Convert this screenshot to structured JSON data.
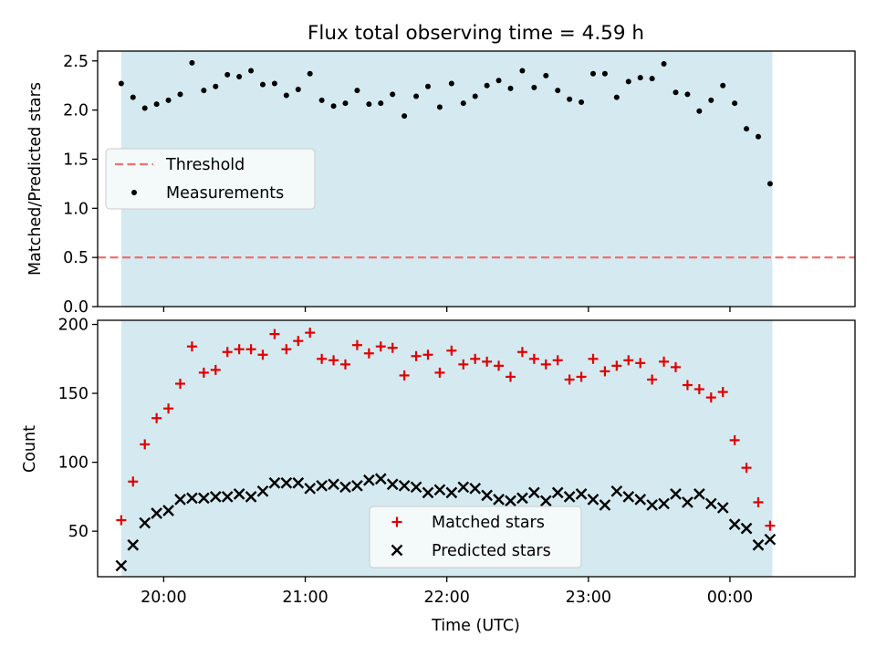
{
  "title": "Flux total observing time = 4.59 h",
  "colors": {
    "observing_span": "#d4eaf0",
    "threshold": "#f07070",
    "measurements": "#000000",
    "matched": "#e00000",
    "predicted": "#000000"
  },
  "chart_data": [
    {
      "type": "scatter",
      "ylabel": "Matched/Predicted stars",
      "ylim": [
        0,
        2.6
      ],
      "yticks": [
        0.0,
        0.5,
        1.0,
        1.5,
        2.0,
        2.5
      ],
      "ytick_labels": [
        "0.0",
        "0.5",
        "1.0",
        "1.5",
        "2.0",
        "2.5"
      ],
      "xlim": [
        "19:32",
        "00:53"
      ],
      "legend_position": "center-left",
      "shaded_span": [
        "19:42",
        "00:18"
      ],
      "threshold": {
        "name": "Threshold",
        "value": 0.5
      },
      "series": [
        {
          "name": "Measurements",
          "marker": "dot",
          "x": [
            "19:42",
            "19:47",
            "19:52",
            "19:57",
            "20:02",
            "20:07",
            "20:12",
            "20:17",
            "20:22",
            "20:27",
            "20:32",
            "20:37",
            "20:42",
            "20:47",
            "20:52",
            "20:57",
            "21:02",
            "21:07",
            "21:12",
            "21:17",
            "21:22",
            "21:27",
            "21:32",
            "21:37",
            "21:42",
            "21:47",
            "21:52",
            "21:57",
            "22:02",
            "22:07",
            "22:12",
            "22:17",
            "22:22",
            "22:27",
            "22:32",
            "22:37",
            "22:42",
            "22:47",
            "22:52",
            "22:57",
            "23:02",
            "23:07",
            "23:12",
            "23:17",
            "23:22",
            "23:27",
            "23:32",
            "23:37",
            "23:42",
            "23:47",
            "23:52",
            "23:57",
            "00:02",
            "00:07",
            "00:12",
            "00:17"
          ],
          "y": [
            2.27,
            2.13,
            2.02,
            2.06,
            2.1,
            2.16,
            2.48,
            2.2,
            2.24,
            2.36,
            2.34,
            2.4,
            2.26,
            2.27,
            2.15,
            2.21,
            2.37,
            2.1,
            2.04,
            2.07,
            2.2,
            2.06,
            2.07,
            2.16,
            1.94,
            2.14,
            2.24,
            2.03,
            2.27,
            2.07,
            2.14,
            2.25,
            2.3,
            2.22,
            2.4,
            2.23,
            2.35,
            2.2,
            2.11,
            2.08,
            2.37,
            2.37,
            2.13,
            2.29,
            2.33,
            2.32,
            2.47,
            2.18,
            2.16,
            1.99,
            2.1,
            2.25,
            2.07,
            1.81,
            1.73,
            1.25
          ]
        }
      ]
    },
    {
      "type": "scatter",
      "xlabel": "Time (UTC)",
      "ylabel": "Count",
      "ylim": [
        17,
        203
      ],
      "yticks": [
        50,
        100,
        150,
        200
      ],
      "ytick_labels": [
        "50",
        "100",
        "150",
        "200"
      ],
      "xlim": [
        "19:32",
        "00:53"
      ],
      "xticks": [
        "20:00",
        "21:00",
        "22:00",
        "23:00",
        "00:00"
      ],
      "xtick_labels": [
        "20:00",
        "21:00",
        "22:00",
        "23:00",
        "00:00"
      ],
      "legend_position": "lower-center",
      "shaded_span": [
        "19:42",
        "00:18"
      ],
      "series": [
        {
          "name": "Matched stars",
          "marker": "plus",
          "x": [
            "19:42",
            "19:47",
            "19:52",
            "19:57",
            "20:02",
            "20:07",
            "20:12",
            "20:17",
            "20:22",
            "20:27",
            "20:32",
            "20:37",
            "20:42",
            "20:47",
            "20:52",
            "20:57",
            "21:02",
            "21:07",
            "21:12",
            "21:17",
            "21:22",
            "21:27",
            "21:32",
            "21:37",
            "21:42",
            "21:47",
            "21:52",
            "21:57",
            "22:02",
            "22:07",
            "22:12",
            "22:17",
            "22:22",
            "22:27",
            "22:32",
            "22:37",
            "22:42",
            "22:47",
            "22:52",
            "22:57",
            "23:02",
            "23:07",
            "23:12",
            "23:17",
            "23:22",
            "23:27",
            "23:32",
            "23:37",
            "23:42",
            "23:47",
            "23:52",
            "23:57",
            "00:02",
            "00:07",
            "00:12",
            "00:17"
          ],
          "y": [
            58,
            86,
            113,
            132,
            139,
            157,
            184,
            165,
            167,
            180,
            182,
            182,
            178,
            193,
            182,
            188,
            194,
            175,
            174,
            171,
            185,
            179,
            184,
            183,
            163,
            177,
            178,
            165,
            181,
            171,
            175,
            173,
            170,
            162,
            180,
            175,
            171,
            174,
            160,
            162,
            175,
            166,
            170,
            174,
            172,
            160,
            173,
            169,
            156,
            153,
            147,
            151,
            116,
            96,
            71,
            54
          ]
        },
        {
          "name": "Predicted stars",
          "marker": "x",
          "x": [
            "19:42",
            "19:47",
            "19:52",
            "19:57",
            "20:02",
            "20:07",
            "20:12",
            "20:17",
            "20:22",
            "20:27",
            "20:32",
            "20:37",
            "20:42",
            "20:47",
            "20:52",
            "20:57",
            "21:02",
            "21:07",
            "21:12",
            "21:17",
            "21:22",
            "21:27",
            "21:32",
            "21:37",
            "21:42",
            "21:47",
            "21:52",
            "21:57",
            "22:02",
            "22:07",
            "22:12",
            "22:17",
            "22:22",
            "22:27",
            "22:32",
            "22:37",
            "22:42",
            "22:47",
            "22:52",
            "22:57",
            "23:02",
            "23:07",
            "23:12",
            "23:17",
            "23:22",
            "23:27",
            "23:32",
            "23:37",
            "23:42",
            "23:47",
            "23:52",
            "23:57",
            "00:02",
            "00:07",
            "00:12",
            "00:17"
          ],
          "y": [
            25,
            40,
            56,
            63,
            65,
            73,
            74,
            74,
            75,
            75,
            77,
            75,
            79,
            85,
            85,
            85,
            81,
            83,
            84,
            82,
            83,
            87,
            88,
            84,
            83,
            82,
            78,
            80,
            78,
            82,
            81,
            76,
            73,
            72,
            74,
            78,
            72,
            78,
            75,
            77,
            73,
            69,
            79,
            75,
            73,
            69,
            70,
            77,
            71,
            77,
            70,
            67,
            55,
            52,
            40,
            44
          ]
        }
      ]
    }
  ]
}
